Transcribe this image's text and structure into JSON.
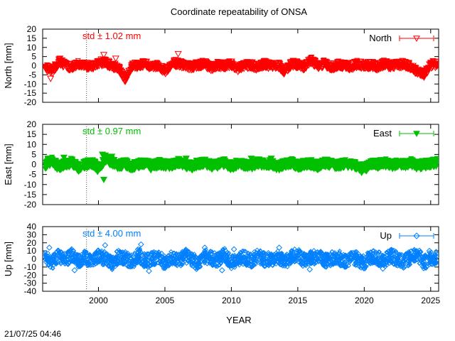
{
  "title": "Coordinate repeatability of ONSA",
  "timestamp": "21/07/25 04:46",
  "chart_data": {
    "type": "scatter",
    "title": "Coordinate repeatability of ONSA",
    "xlabel": "YEAR",
    "xlim": [
      1995.8,
      2025.6
    ],
    "x_ticks": [
      2000,
      2005,
      2010,
      2015,
      2020,
      2025
    ],
    "x_tick_labels": [
      "2000",
      "2005",
      "2010",
      "2015",
      "2020",
      "2025"
    ],
    "reference_line_x": 1999.1,
    "panels": [
      {
        "name": "North",
        "ylabel": "North [mm]",
        "ylim": [
          -20,
          20
        ],
        "y_ticks": [
          -20,
          -15,
          -10,
          -5,
          0,
          5,
          10,
          15,
          20
        ],
        "y_tick_labels": [
          "-20",
          "-15",
          "-10",
          "-5",
          "0",
          "5",
          "10",
          "15",
          "20"
        ],
        "color": "#ff0000",
        "marker": "triangle-down-open",
        "std_label": "std ± 1.02 mm",
        "legend": "North",
        "legend_position": "top-right",
        "x": [
          1996.0,
          1996.5,
          1997.0,
          1997.5,
          1998.0,
          1998.5,
          1999.0,
          1999.5,
          2000.0,
          2000.5,
          2001.0,
          2001.5,
          2002.0,
          2002.5,
          2003.0,
          2003.5,
          2004.0,
          2004.5,
          2005.0,
          2005.5,
          2006.0,
          2006.5,
          2007.0,
          2007.5,
          2008.0,
          2008.5,
          2009.0,
          2009.5,
          2010.0,
          2010.5,
          2011.0,
          2011.5,
          2012.0,
          2012.5,
          2013.0,
          2013.5,
          2014.0,
          2014.5,
          2015.0,
          2015.5,
          2016.0,
          2016.5,
          2017.0,
          2017.5,
          2018.0,
          2018.5,
          2019.0,
          2019.5,
          2020.0,
          2020.5,
          2021.0,
          2021.5,
          2022.0,
          2022.5,
          2023.0,
          2023.5,
          2024.0,
          2024.5,
          2025.0,
          2025.5
        ],
        "y": [
          -1.0,
          -3.0,
          2.0,
          0.5,
          -1.0,
          1.0,
          0.0,
          -0.5,
          1.5,
          2.0,
          0.0,
          -1.0,
          -7.5,
          -0.5,
          0.5,
          1.0,
          -1.0,
          0.0,
          -3.0,
          1.0,
          1.5,
          0.0,
          -0.5,
          0.5,
          1.0,
          -1.0,
          0.5,
          0.0,
          1.0,
          -1.5,
          0.0,
          0.5,
          -1.0,
          1.0,
          0.0,
          0.5,
          -3.0,
          1.0,
          0.5,
          -0.5,
          3.0,
          0.0,
          1.0,
          -1.0,
          0.5,
          0.0,
          -0.5,
          1.0,
          0.0,
          0.5,
          -0.5,
          1.0,
          0.0,
          0.5,
          1.0,
          -0.5,
          -3.5,
          -4.5,
          0.5,
          1.0
        ],
        "extra_points": [
          [
            1996.4,
            -7
          ],
          [
            1997.1,
            4
          ],
          [
            2000.4,
            6
          ],
          [
            2001.3,
            4
          ],
          [
            2001.95,
            -8
          ],
          [
            2006.0,
            6.5
          ],
          [
            2016.0,
            3.5
          ],
          [
            2023.9,
            -3
          ],
          [
            2024.5,
            -5
          ]
        ]
      },
      {
        "name": "East",
        "ylabel": "East [mm]",
        "ylim": [
          -20,
          20
        ],
        "y_ticks": [
          -20,
          -15,
          -10,
          -5,
          0,
          5,
          10,
          15,
          20
        ],
        "y_tick_labels": [
          "-20",
          "-15",
          "-10",
          "-5",
          "0",
          "5",
          "10",
          "15",
          "20"
        ],
        "color": "#00c000",
        "marker": "triangle-down-filled",
        "std_label": "std ± 0.97 mm",
        "legend": "East",
        "legend_position": "top-right",
        "x": [
          1996.0,
          1996.5,
          1997.0,
          1997.5,
          1998.0,
          1998.5,
          1999.0,
          1999.5,
          2000.0,
          2000.5,
          2001.0,
          2001.5,
          2002.0,
          2002.5,
          2003.0,
          2003.5,
          2004.0,
          2004.5,
          2005.0,
          2005.5,
          2006.0,
          2006.5,
          2007.0,
          2007.5,
          2008.0,
          2008.5,
          2009.0,
          2009.5,
          2010.0,
          2010.5,
          2011.0,
          2011.5,
          2012.0,
          2012.5,
          2013.0,
          2013.5,
          2014.0,
          2014.5,
          2015.0,
          2015.5,
          2016.0,
          2016.5,
          2017.0,
          2017.5,
          2018.0,
          2018.5,
          2019.0,
          2019.5,
          2020.0,
          2020.5,
          2021.0,
          2021.5,
          2022.0,
          2022.5,
          2023.0,
          2023.5,
          2024.0,
          2024.5,
          2025.0,
          2025.5
        ],
        "y": [
          0.0,
          1.5,
          -1.0,
          0.5,
          1.0,
          -1.5,
          0.0,
          1.0,
          -2.0,
          3.0,
          1.0,
          -0.5,
          0.5,
          -1.0,
          0.0,
          1.0,
          -1.0,
          0.5,
          0.0,
          -0.5,
          1.0,
          0.0,
          -1.0,
          0.5,
          1.0,
          -0.5,
          0.0,
          1.0,
          -1.0,
          0.5,
          0.0,
          -0.5,
          1.0,
          0.0,
          0.5,
          -1.0,
          0.0,
          1.0,
          -0.5,
          0.0,
          0.5,
          -1.0,
          1.0,
          0.0,
          -0.5,
          0.5,
          0.0,
          -1.0,
          -2.0,
          0.5,
          0.0,
          1.0,
          -0.5,
          0.5,
          0.0,
          1.0,
          -0.5,
          0.0,
          0.5,
          1.0
        ],
        "extra_points": [
          [
            1996.2,
            3
          ],
          [
            1997.4,
            3.5
          ],
          [
            2000.4,
            -7.5
          ],
          [
            2000.3,
            5
          ],
          [
            2001.0,
            4
          ],
          [
            2006.6,
            3
          ],
          [
            2011.5,
            3
          ],
          [
            2013.0,
            3
          ],
          [
            2019.8,
            -4
          ]
        ]
      },
      {
        "name": "Up",
        "ylabel": "Up [mm]",
        "ylim": [
          -40,
          40
        ],
        "y_ticks": [
          -40,
          -30,
          -20,
          -10,
          0,
          10,
          20,
          30,
          40
        ],
        "y_tick_labels": [
          "-40",
          "-30",
          "-20",
          "-10",
          "0",
          "10",
          "20",
          "30",
          "40"
        ],
        "color": "#0080ff",
        "marker": "diamond-open",
        "std_label": "std ± 4.00 mm",
        "legend": "Up",
        "legend_position": "top-right",
        "x": [
          1996.0,
          1996.5,
          1997.0,
          1997.5,
          1998.0,
          1998.5,
          1999.0,
          1999.5,
          2000.0,
          2000.5,
          2001.0,
          2001.5,
          2002.0,
          2002.5,
          2003.0,
          2003.5,
          2004.0,
          2004.5,
          2005.0,
          2005.5,
          2006.0,
          2006.5,
          2007.0,
          2007.5,
          2008.0,
          2008.5,
          2009.0,
          2009.5,
          2010.0,
          2010.5,
          2011.0,
          2011.5,
          2012.0,
          2012.5,
          2013.0,
          2013.5,
          2014.0,
          2014.5,
          2015.0,
          2015.5,
          2016.0,
          2016.5,
          2017.0,
          2017.5,
          2018.0,
          2018.5,
          2019.0,
          2019.5,
          2020.0,
          2020.5,
          2021.0,
          2021.5,
          2022.0,
          2022.5,
          2023.0,
          2023.5,
          2024.0,
          2024.5,
          2025.0,
          2025.5
        ],
        "y": [
          0.0,
          -4.0,
          3.0,
          -2.0,
          5.0,
          -3.0,
          2.0,
          -5.0,
          4.0,
          0.0,
          -6.0,
          3.0,
          1.0,
          -4.0,
          5.0,
          -2.0,
          0.0,
          3.0,
          -5.0,
          2.0,
          -3.0,
          4.0,
          0.0,
          -6.0,
          3.0,
          1.0,
          -2.0,
          5.0,
          -4.0,
          0.0,
          2.0,
          -3.0,
          4.0,
          -1.0,
          0.0,
          3.0,
          -5.0,
          2.0,
          5.0,
          -2.0,
          1.0,
          4.0,
          -3.0,
          0.0,
          3.0,
          -4.0,
          2.0,
          0.0,
          -5.0,
          3.0,
          1.0,
          -2.0,
          4.0,
          0.0,
          -3.0,
          2.0,
          5.0,
          -4.0,
          0.0,
          3.0
        ],
        "extra_points": [
          [
            1996.3,
            14
          ],
          [
            2000.5,
            17
          ],
          [
            2003.2,
            18
          ],
          [
            2008.0,
            14
          ],
          [
            2010.2,
            12
          ],
          [
            2013.6,
            14
          ],
          [
            2024.9,
            10
          ],
          [
            1998.2,
            -14
          ],
          [
            2003.8,
            -15
          ],
          [
            2009.3,
            -14
          ],
          [
            2015.9,
            -13
          ],
          [
            2021.4,
            -12
          ]
        ]
      }
    ]
  }
}
